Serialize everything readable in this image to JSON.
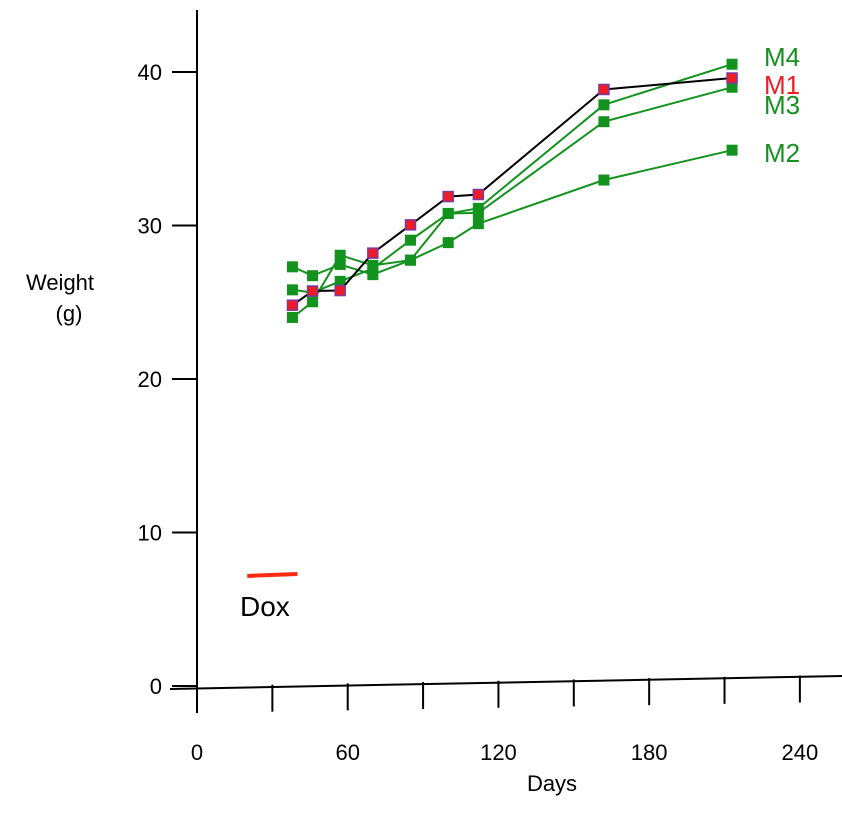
{
  "chart_data": {
    "type": "line",
    "xlabel": "Days",
    "ylabel_line1": "Weight",
    "ylabel_line2": "(g)",
    "xlim": [
      0,
      240
    ],
    "ylim": [
      0,
      40
    ],
    "x_ticks": [
      0,
      60,
      120,
      180,
      240
    ],
    "x_minor_ticks": [
      30,
      90,
      150,
      210
    ],
    "y_ticks": [
      0,
      10,
      20,
      30,
      40
    ],
    "grid": false,
    "annotation": {
      "label": "Dox",
      "x_range": [
        20,
        40
      ],
      "y": 7.3,
      "color": "#ff2a12"
    },
    "series": [
      {
        "name": "M1",
        "label_color": "#ee1c24",
        "line_color": "#000000",
        "marker_fill": "#ee1c24",
        "marker_edge": "#7a3aa0",
        "x": [
          38,
          46,
          57,
          70,
          85,
          100,
          112,
          162,
          213
        ],
        "y": [
          24.7,
          25.6,
          25.6,
          28.0,
          29.8,
          31.6,
          31.7,
          38.4,
          39.0
        ]
      },
      {
        "name": "M2",
        "label_color": "#14921f",
        "line_color": "#14921f",
        "marker_fill": "#14921f",
        "marker_edge": "#14921f",
        "x": [
          38,
          46,
          57,
          70,
          85,
          100,
          112,
          162,
          213
        ],
        "y": [
          27.2,
          26.6,
          27.3,
          26.6,
          27.5,
          28.6,
          29.8,
          32.5,
          34.3
        ]
      },
      {
        "name": "M3",
        "label_color": "#14921f",
        "line_color": "#14921f",
        "marker_fill": "#14921f",
        "marker_edge": "#14921f",
        "x": [
          38,
          46,
          57,
          70,
          85,
          100,
          112,
          162,
          213
        ],
        "y": [
          25.7,
          25.5,
          26.2,
          27.0,
          28.8,
          30.5,
          30.5,
          36.3,
          38.4
        ]
      },
      {
        "name": "M4",
        "label_color": "#14921f",
        "line_color": "#14921f",
        "marker_fill": "#14921f",
        "marker_edge": "#14921f",
        "x": [
          38,
          46,
          57,
          70,
          85,
          100,
          112,
          162,
          213
        ],
        "y": [
          23.9,
          24.9,
          27.9,
          27.2,
          27.5,
          30.5,
          30.8,
          37.4,
          39.9
        ]
      }
    ]
  }
}
